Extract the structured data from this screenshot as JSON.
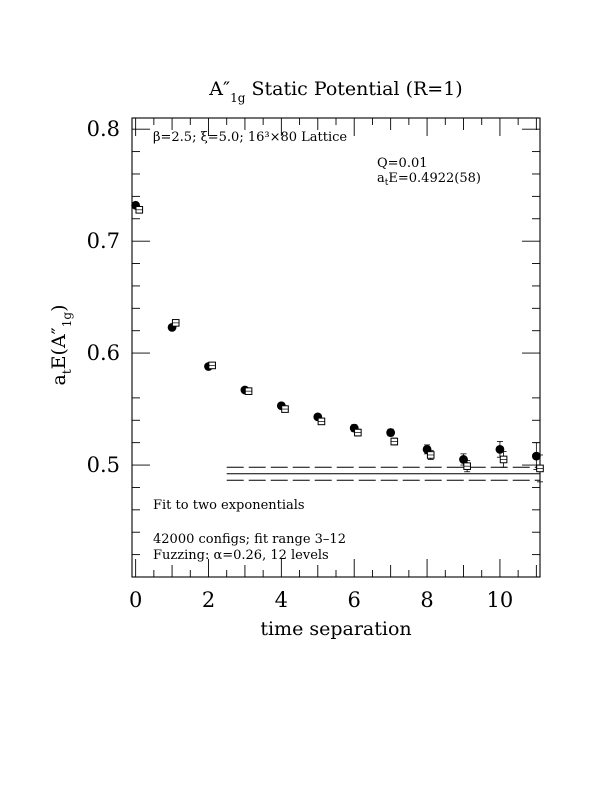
{
  "chart_data": {
    "type": "scatter",
    "title": "A″",
    "title_sub": "1g",
    "title_rest": " Static Potential (R=1)",
    "xlabel": "time separation",
    "ylabel_main": "a",
    "ylabel_sub": "t",
    "ylabel_mid": "E(A″",
    "ylabel_sub2": "1g",
    "ylabel_end": ")",
    "xlim": [
      -0.1,
      11.1
    ],
    "ylim": [
      0.4,
      0.81
    ],
    "x_ticks": [
      0,
      2,
      4,
      6,
      8,
      10
    ],
    "y_ticks": [
      0.5,
      0.6,
      0.7,
      0.8
    ],
    "x_tick_labels": [
      "0",
      "2",
      "4",
      "6",
      "8",
      "10"
    ],
    "y_tick_labels": [
      "0.5",
      "0.6",
      "0.7",
      "0.8"
    ],
    "grid": false,
    "series": [
      {
        "marker": "filled-circle",
        "x": [
          0,
          1,
          2,
          3,
          4,
          5,
          6,
          7,
          8,
          9,
          10,
          11
        ],
        "y": [
          0.732,
          0.623,
          0.588,
          0.567,
          0.553,
          0.543,
          0.533,
          0.529,
          0.514,
          0.505,
          0.514,
          0.508
        ],
        "err": [
          0.002,
          0.002,
          0.002,
          0.002,
          0.002,
          0.002,
          0.003,
          0.003,
          0.004,
          0.005,
          0.007,
          0.012
        ]
      },
      {
        "marker": "open-square",
        "x": [
          0.1,
          1.1,
          2.1,
          3.1,
          4.1,
          5.1,
          6.1,
          7.1,
          8.1,
          9.1,
          10.1,
          11.1
        ],
        "y": [
          0.728,
          0.627,
          0.589,
          0.566,
          0.55,
          0.539,
          0.529,
          0.521,
          0.509,
          0.499,
          0.505,
          0.497
        ],
        "err": [
          0.002,
          0.002,
          0.002,
          0.002,
          0.002,
          0.002,
          0.003,
          0.003,
          0.004,
          0.005,
          0.007,
          0.012
        ]
      }
    ],
    "fit": {
      "x_range": [
        2.5,
        11.1
      ],
      "center": 0.4922,
      "error": 0.0058
    },
    "annotations": {
      "lattice_info": "β=2.5; ξ=5.0; 16³×80 Lattice",
      "q_value": "Q=0.01",
      "energy_prefix": "a",
      "energy_sub": "t",
      "energy_rest": "E=0.4922(58)",
      "fit_label": "Fit to two exponentials",
      "configs": "42000 configs; fit range 3–12",
      "fuzzing": "Fuzzing: α=0.26, 12 levels"
    }
  }
}
